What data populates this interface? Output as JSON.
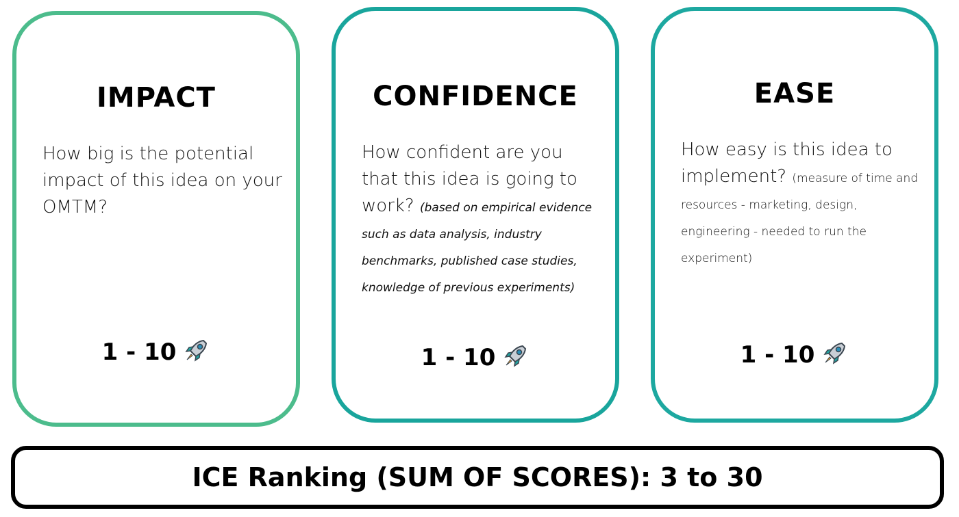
{
  "cards": [
    {
      "title": "IMPACT",
      "description": "How big is the potential impact of this idea on your OMTM?",
      "note": "",
      "score": "1 - 10",
      "icon": "rocket-icon",
      "border_color": "#4cbc8c"
    },
    {
      "title": "CONFIDENCE",
      "description": "How confident are you that this idea is going to work?",
      "note": "(based on empirical evidence such as data analysis, industry benchmarks, published case studies, knowledge of previous experiments)",
      "score": "1 - 10",
      "icon": "rocket-icon",
      "border_color": "#19a59c"
    },
    {
      "title": "EASE",
      "description": "How easy is this idea to implement?",
      "note": "(measure of time and resources - marketing, design, engineering - needed to run the experiment)",
      "score": "1 - 10",
      "icon": "rocket-icon",
      "border_color": "#1da8a0"
    }
  ],
  "ranking": {
    "text": "ICE Ranking (SUM OF SCORES): 3 to 30"
  }
}
